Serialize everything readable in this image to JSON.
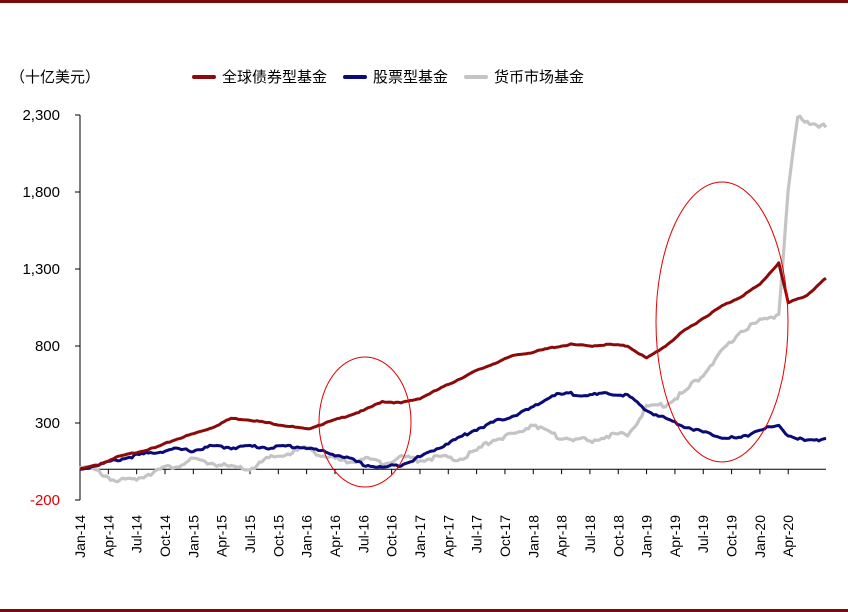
{
  "unit_label": "（十亿美元）",
  "chart_data": {
    "type": "line",
    "ylim": [
      -200,
      2300
    ],
    "yticks": [
      "2,300",
      "1,800",
      "1,300",
      "800",
      "300",
      "-200"
    ],
    "ytick_values": [
      2300,
      1800,
      1300,
      800,
      300,
      -200
    ],
    "x": [
      "Jan-14",
      "Apr-14",
      "Jul-14",
      "Oct-14",
      "Jan-15",
      "Apr-15",
      "Jul-15",
      "Oct-15",
      "Jan-16",
      "Apr-16",
      "Jul-16",
      "Oct-16",
      "Jan-17",
      "Apr-17",
      "Jul-17",
      "Oct-17",
      "Jan-18",
      "Apr-18",
      "Jul-18",
      "Oct-18",
      "Jan-19",
      "Apr-19",
      "Jul-19",
      "Oct-19",
      "Jan-20",
      "Apr-20"
    ],
    "series": [
      {
        "name": "全球债券型基金",
        "color": "#8b0a0a",
        "points": [
          [
            "2014-01",
            0
          ],
          [
            "2014-03",
            30
          ],
          [
            "2014-05",
            80
          ],
          [
            "2014-07",
            110
          ],
          [
            "2014-09",
            140
          ],
          [
            "2014-11",
            190
          ],
          [
            "2015-01",
            230
          ],
          [
            "2015-03",
            270
          ],
          [
            "2015-05",
            330
          ],
          [
            "2015-07",
            320
          ],
          [
            "2015-09",
            300
          ],
          [
            "2015-11",
            280
          ],
          [
            "2016-01",
            260
          ],
          [
            "2016-03",
            300
          ],
          [
            "2016-05",
            340
          ],
          [
            "2016-07",
            380
          ],
          [
            "2016-09",
            440
          ],
          [
            "2016-11",
            430
          ],
          [
            "2017-01",
            460
          ],
          [
            "2017-03",
            520
          ],
          [
            "2017-05",
            580
          ],
          [
            "2017-07",
            640
          ],
          [
            "2017-09",
            690
          ],
          [
            "2017-11",
            740
          ],
          [
            "2018-01",
            760
          ],
          [
            "2018-03",
            790
          ],
          [
            "2018-05",
            810
          ],
          [
            "2018-07",
            800
          ],
          [
            "2018-09",
            810
          ],
          [
            "2018-11",
            800
          ],
          [
            "2019-01",
            720
          ],
          [
            "2019-03",
            800
          ],
          [
            "2019-05",
            900
          ],
          [
            "2019-07",
            980
          ],
          [
            "2019-09",
            1060
          ],
          [
            "2019-11",
            1120
          ],
          [
            "2020-01",
            1200
          ],
          [
            "2020-03",
            1340
          ],
          [
            "2020-04",
            1080
          ],
          [
            "2020-06",
            1130
          ],
          [
            "2020-08",
            1240
          ]
        ]
      },
      {
        "name": "股票型基金",
        "color": "#0a0a78",
        "points": [
          [
            "2014-01",
            0
          ],
          [
            "2014-03",
            30
          ],
          [
            "2014-05",
            60
          ],
          [
            "2014-07",
            90
          ],
          [
            "2014-09",
            110
          ],
          [
            "2014-11",
            130
          ],
          [
            "2015-01",
            120
          ],
          [
            "2015-03",
            150
          ],
          [
            "2015-05",
            140
          ],
          [
            "2015-07",
            150
          ],
          [
            "2015-09",
            140
          ],
          [
            "2015-11",
            150
          ],
          [
            "2016-01",
            140
          ],
          [
            "2016-03",
            110
          ],
          [
            "2016-05",
            80
          ],
          [
            "2016-07",
            30
          ],
          [
            "2016-09",
            10
          ],
          [
            "2016-11",
            30
          ],
          [
            "2017-01",
            80
          ],
          [
            "2017-03",
            140
          ],
          [
            "2017-05",
            200
          ],
          [
            "2017-07",
            260
          ],
          [
            "2017-09",
            310
          ],
          [
            "2017-11",
            350
          ],
          [
            "2018-01",
            400
          ],
          [
            "2018-03",
            480
          ],
          [
            "2018-05",
            490
          ],
          [
            "2018-07",
            480
          ],
          [
            "2018-09",
            490
          ],
          [
            "2018-11",
            480
          ],
          [
            "2019-01",
            380
          ],
          [
            "2019-03",
            330
          ],
          [
            "2019-05",
            280
          ],
          [
            "2019-07",
            240
          ],
          [
            "2019-09",
            210
          ],
          [
            "2019-11",
            200
          ],
          [
            "2020-01",
            260
          ],
          [
            "2020-03",
            280
          ],
          [
            "2020-04",
            220
          ],
          [
            "2020-06",
            180
          ],
          [
            "2020-08",
            200
          ]
        ]
      },
      {
        "name": "货币市场基金",
        "color": "#c4c4c4",
        "points": [
          [
            "2014-01",
            20
          ],
          [
            "2014-03",
            -20
          ],
          [
            "2014-05",
            -80
          ],
          [
            "2014-07",
            -60
          ],
          [
            "2014-09",
            -10
          ],
          [
            "2014-11",
            20
          ],
          [
            "2015-01",
            60
          ],
          [
            "2015-03",
            40
          ],
          [
            "2015-05",
            10
          ],
          [
            "2015-07",
            0
          ],
          [
            "2015-09",
            70
          ],
          [
            "2015-11",
            100
          ],
          [
            "2016-01",
            140
          ],
          [
            "2016-03",
            80
          ],
          [
            "2016-05",
            50
          ],
          [
            "2016-07",
            70
          ],
          [
            "2016-09",
            40
          ],
          [
            "2016-11",
            80
          ],
          [
            "2017-01",
            60
          ],
          [
            "2017-03",
            80
          ],
          [
            "2017-05",
            60
          ],
          [
            "2017-07",
            120
          ],
          [
            "2017-09",
            200
          ],
          [
            "2017-11",
            220
          ],
          [
            "2018-01",
            300
          ],
          [
            "2018-03",
            220
          ],
          [
            "2018-05",
            200
          ],
          [
            "2018-07",
            180
          ],
          [
            "2018-09",
            220
          ],
          [
            "2018-11",
            220
          ],
          [
            "2019-01",
            400
          ],
          [
            "2019-03",
            420
          ],
          [
            "2019-05",
            500
          ],
          [
            "2019-07",
            620
          ],
          [
            "2019-09",
            760
          ],
          [
            "2019-11",
            900
          ],
          [
            "2020-01",
            960
          ],
          [
            "2020-03",
            1010
          ],
          [
            "2020-04",
            1800
          ],
          [
            "2020-05",
            2280
          ],
          [
            "2020-08",
            2220
          ]
        ]
      }
    ]
  }
}
